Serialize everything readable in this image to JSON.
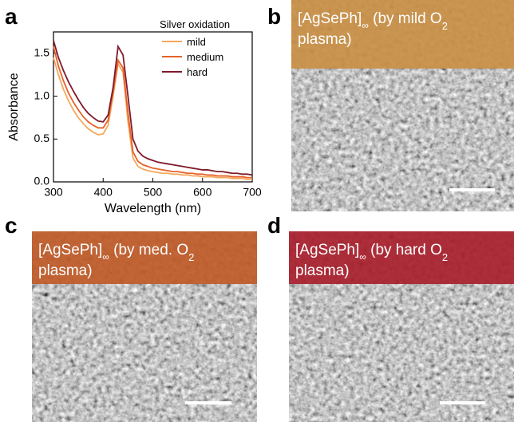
{
  "panel_labels": [
    "a",
    "b",
    "c",
    "d"
  ],
  "chart_data": {
    "type": "line",
    "xlabel": "Wavelength (nm)",
    "ylabel": "Absorbance",
    "legend_title": "Silver oxidation",
    "legend": "upper right",
    "x": [
      300,
      310,
      320,
      330,
      340,
      350,
      360,
      370,
      380,
      390,
      400,
      410,
      420,
      430,
      440,
      450,
      460,
      470,
      480,
      490,
      500,
      510,
      520,
      530,
      540,
      550,
      560,
      570,
      580,
      590,
      600,
      610,
      620,
      630,
      640,
      650,
      660,
      670,
      680,
      690,
      700
    ],
    "series": [
      {
        "name": "mild",
        "color": "#f4a85c",
        "values": [
          1.45,
          1.25,
          1.08,
          0.95,
          0.84,
          0.75,
          0.68,
          0.62,
          0.58,
          0.55,
          0.56,
          0.66,
          1.0,
          1.38,
          1.28,
          0.7,
          0.28,
          0.18,
          0.15,
          0.13,
          0.12,
          0.11,
          0.1,
          0.1,
          0.09,
          0.09,
          0.08,
          0.08,
          0.07,
          0.07,
          0.06,
          0.06,
          0.06,
          0.05,
          0.05,
          0.05,
          0.04,
          0.04,
          0.04,
          0.03,
          0.03
        ]
      },
      {
        "name": "medium",
        "color": "#e6622a",
        "values": [
          1.58,
          1.35,
          1.18,
          1.04,
          0.93,
          0.84,
          0.76,
          0.7,
          0.66,
          0.63,
          0.63,
          0.72,
          1.05,
          1.42,
          1.33,
          0.8,
          0.35,
          0.24,
          0.2,
          0.18,
          0.16,
          0.15,
          0.14,
          0.13,
          0.12,
          0.12,
          0.11,
          0.1,
          0.1,
          0.09,
          0.09,
          0.08,
          0.08,
          0.07,
          0.07,
          0.07,
          0.06,
          0.06,
          0.06,
          0.05,
          0.05
        ]
      },
      {
        "name": "hard",
        "color": "#7e1a2a",
        "values": [
          1.65,
          1.45,
          1.3,
          1.17,
          1.06,
          0.96,
          0.87,
          0.8,
          0.75,
          0.71,
          0.7,
          0.78,
          1.1,
          1.58,
          1.48,
          1.0,
          0.5,
          0.36,
          0.3,
          0.27,
          0.25,
          0.23,
          0.22,
          0.21,
          0.2,
          0.19,
          0.18,
          0.17,
          0.16,
          0.15,
          0.14,
          0.14,
          0.13,
          0.12,
          0.12,
          0.11,
          0.1,
          0.1,
          0.09,
          0.09,
          0.08
        ]
      }
    ],
    "xlim": [
      300,
      700
    ],
    "xticks": [
      300,
      400,
      500,
      600,
      700
    ],
    "ylim": [
      0,
      1.75
    ],
    "yticks": [
      {
        "value": 0,
        "label": "0.0"
      },
      0.5,
      {
        "value": 1,
        "label": "1.0"
      },
      1.5
    ]
  },
  "images": [
    {
      "caption": {
        "prefix": "[AgSePh]",
        "sub1": "∞",
        "middle": " (by mild O",
        "sub2": "2",
        "suffix": "plasma)"
      },
      "color": "#c98f45"
    },
    {
      "caption": {
        "prefix": "[AgSePh]",
        "sub1": "∞",
        "middle": " (by med. O",
        "sub2": "2",
        "suffix": "plasma)"
      },
      "color": "#bf5a28"
    },
    {
      "caption": {
        "prefix": "[AgSePh]",
        "sub1": "∞",
        "middle": " (by hard O",
        "sub2": "2",
        "suffix": "plasma)"
      },
      "color": "#a8202c"
    }
  ]
}
